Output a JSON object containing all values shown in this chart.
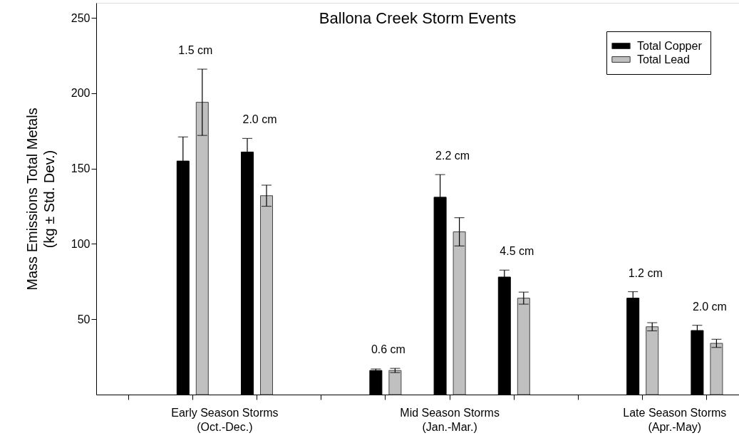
{
  "chart_data": {
    "type": "bar",
    "title": "Ballona Creek Storm Events",
    "ylabel": "Mass Emissions Total Metals\n(kg ± Std. Dev.)",
    "categories": [
      null,
      null,
      null,
      null,
      null,
      null,
      null,
      null,
      null,
      null
    ],
    "ylim": [
      0,
      260
    ],
    "yticks": [
      50,
      100,
      150,
      200,
      250
    ],
    "series": [
      {
        "name": "Total Copper",
        "color": "#000000",
        "values": [
          null,
          155,
          161,
          null,
          16,
          131,
          78,
          null,
          64,
          42.5
        ],
        "errors": [
          null,
          16,
          9,
          null,
          1,
          15,
          4.6,
          null,
          4.3,
          3.5
        ]
      },
      {
        "name": "Total Lead",
        "color": "#c0c0c0",
        "values": [
          null,
          194,
          132,
          null,
          16,
          108,
          64,
          null,
          45,
          34
        ],
        "errors": [
          null,
          22,
          7,
          null,
          1.4,
          9.4,
          4,
          null,
          2.7,
          2.7
        ]
      }
    ],
    "annotations": [
      "1.5 cm",
      "2.0 cm",
      "0.6 cm",
      "2.2 cm",
      "4.5 cm",
      "1.2 cm",
      "2.0 cm",
      "Early Season Storms\n(Oct.-Dec.)",
      "Mid Season Storms\n(Jan.-Mar.)",
      "Late Season Storms\n(Apr.-May)"
    ],
    "legend": "top right",
    "grid": false
  }
}
